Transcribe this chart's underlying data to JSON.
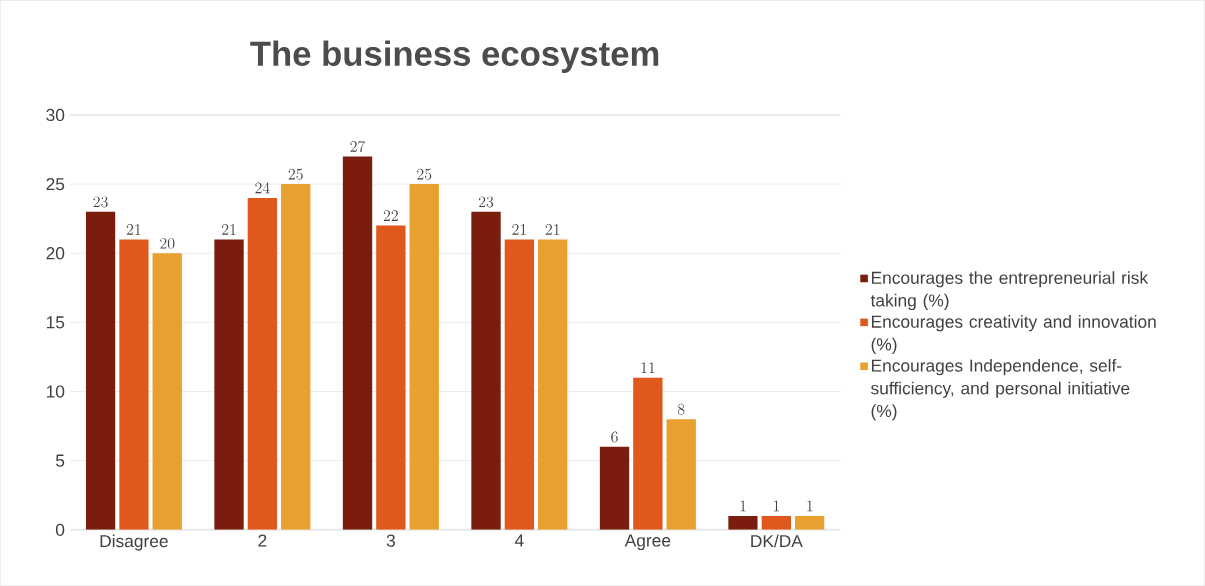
{
  "chart_data": {
    "type": "bar",
    "title": "The business ecosystem",
    "categories": [
      "Disagree",
      "2",
      "3",
      "4",
      "Agree",
      "DK/DA"
    ],
    "series": [
      {
        "name": "Encourages the entrepreneurial risk taking (%)",
        "color": "#7a1c0e",
        "values": [
          23,
          21,
          27,
          23,
          6,
          1
        ]
      },
      {
        "name": "Encourages creativity and innovation (%)",
        "color": "#e0581c",
        "values": [
          21,
          24,
          22,
          21,
          11,
          1
        ]
      },
      {
        "name": "Encourages Independence, self-sufficiency, and personal initiative (%)",
        "color": "#e8a030",
        "values": [
          20,
          25,
          25,
          21,
          8,
          1
        ]
      }
    ],
    "ylim": [
      0,
      30
    ],
    "yticks": [
      0,
      5,
      10,
      15,
      20,
      25,
      30
    ],
    "grid": "y",
    "legend": "right",
    "data_labels": true
  }
}
